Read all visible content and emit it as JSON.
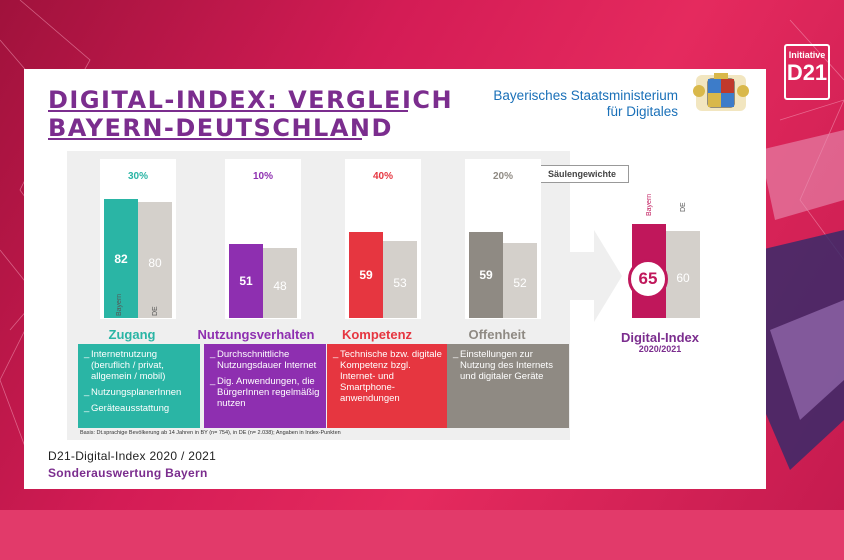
{
  "header": {
    "title_line1": "DIGITAL-INDEX: VERGLEICH",
    "title_line2": "BAYERN-DEUTSCHLAND",
    "ministry_line1": "Bayerisches Staatsministerium",
    "ministry_line2": "für Digitales",
    "d21_small": "Initiative",
    "d21_big": "D21"
  },
  "weights_tag": "Säulengewichte",
  "columns": [
    {
      "name": "Zugang",
      "weight": "30%",
      "by": 82,
      "de": 80,
      "by_label": "Bayern",
      "de_label": "DE",
      "color": "#2ab5a5",
      "items": [
        "Internetnutzung (beruflich / privat, allgemein / mobil)",
        "NutzungsplanerInnen",
        "Geräteausstattung"
      ]
    },
    {
      "name": "Nutzungsverhalten",
      "weight": "10%",
      "by": 51,
      "de": 48,
      "color": "#8e2fb0",
      "items": [
        "Durchschnittliche Nutzungsdauer Internet",
        "Dig. Anwendungen, die BürgerInnen regelmäßig nutzen"
      ]
    },
    {
      "name": "Kompetenz",
      "weight": "40%",
      "by": 59,
      "de": 53,
      "color": "#e63640",
      "items": [
        "Technische bzw. digitale Kompetenz bzgl. Internet- und Smartphone-anwendungen"
      ]
    },
    {
      "name": "Offenheit",
      "weight": "20%",
      "by": 59,
      "de": 52,
      "color": "#8f8a83",
      "items": [
        "Einstellungen zur Nutzung des Internets und digitaler Geräte"
      ]
    }
  ],
  "index": {
    "by": 65,
    "de": 60,
    "by_label": "Bayern",
    "de_label": "DE",
    "label": "Digital-Index",
    "sub": "2020/2021",
    "color": "#c0175b"
  },
  "basis": "Basis: Dt.sprachige Bevölkerung ab 14 Jahren in BY (n= 754), in DE (n= 2.038); Angaben in Index-Punkten",
  "footer": {
    "line1": "D21-Digital-Index 2020 / 2021",
    "line2": "Sonderauswertung Bayern"
  },
  "chart_data": {
    "type": "bar",
    "title": "DIGITAL-INDEX: VERGLEICH BAYERN-DEUTSCHLAND",
    "categories": [
      "Zugang",
      "Nutzungsverhalten",
      "Kompetenz",
      "Offenheit",
      "Digital-Index"
    ],
    "series": [
      {
        "name": "Bayern",
        "values": [
          82,
          51,
          59,
          59,
          65
        ]
      },
      {
        "name": "DE",
        "values": [
          80,
          48,
          53,
          52,
          60
        ]
      }
    ],
    "weights": [
      "30%",
      "10%",
      "40%",
      "20%"
    ],
    "ylim": [
      0,
      100
    ]
  }
}
